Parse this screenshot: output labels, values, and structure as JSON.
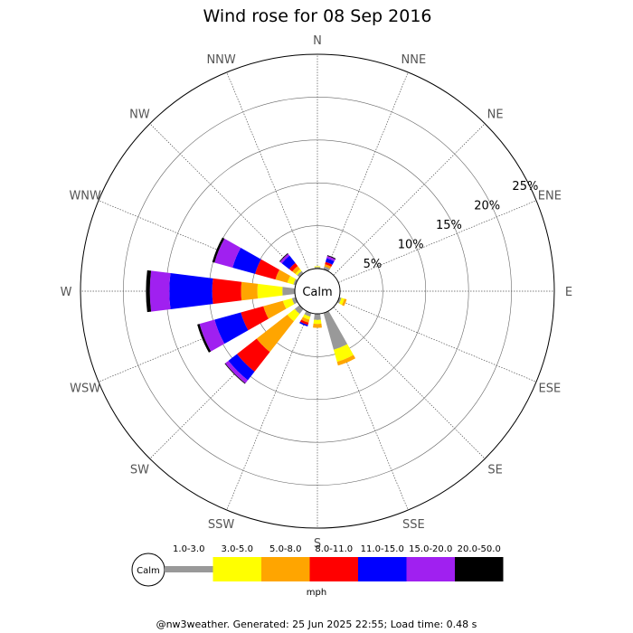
{
  "chart_data": {
    "type": "windrose",
    "title": "Wind rose for 08 Sep 2016",
    "directions": [
      "N",
      "NNE",
      "NE",
      "ENE",
      "E",
      "ESE",
      "SE",
      "SSE",
      "S",
      "SSW",
      "SW",
      "WSW",
      "W",
      "WNW",
      "NW",
      "NNW"
    ],
    "ring_labels": [
      "5%",
      "10%",
      "15%",
      "20%",
      "25%"
    ],
    "ring_values": [
      5,
      10,
      15,
      20,
      25
    ],
    "rmax": 27.5,
    "calm_label": "Calm",
    "unit": "mph",
    "speed_bins": [
      {
        "label": "1.0-3.0",
        "color": "#999999"
      },
      {
        "label": "3.0-5.0",
        "color": "#ffff00"
      },
      {
        "label": "5.0-8.0",
        "color": "#ffa500"
      },
      {
        "label": "8.0-11.0",
        "color": "#ff0000"
      },
      {
        "label": "11.0-15.0",
        "color": "#0000ff"
      },
      {
        "label": "15.0-20.0",
        "color": "#a020f0"
      },
      {
        "label": "20.0-50.0",
        "color": "#000000"
      }
    ],
    "series": [
      {
        "direction": "N",
        "values": [
          0.2,
          0.1,
          0,
          0,
          0,
          0,
          0
        ]
      },
      {
        "direction": "NNE",
        "values": [
          0.4,
          0,
          0.3,
          0.3,
          0.5,
          0.3,
          0.1
        ]
      },
      {
        "direction": "NE",
        "values": [
          0,
          0,
          0,
          0,
          0,
          0,
          0
        ]
      },
      {
        "direction": "ENE",
        "values": [
          0,
          0,
          0,
          0,
          0,
          0,
          0
        ]
      },
      {
        "direction": "E",
        "values": [
          0,
          0,
          0,
          0,
          0,
          0,
          0
        ]
      },
      {
        "direction": "ESE",
        "values": [
          0.3,
          0.4,
          0.3,
          0,
          0,
          0,
          0
        ]
      },
      {
        "direction": "SE",
        "values": [
          0,
          0,
          0,
          0,
          0,
          0,
          0
        ]
      },
      {
        "direction": "SSE",
        "values": [
          4.9,
          1.6,
          0.5,
          0,
          0,
          0,
          0
        ]
      },
      {
        "direction": "S",
        "values": [
          0.8,
          0.5,
          0.5,
          0,
          0,
          0,
          0
        ]
      },
      {
        "direction": "SSW",
        "values": [
          0.5,
          0.4,
          0.4,
          0.3,
          0.2,
          0,
          0
        ]
      },
      {
        "direction": "SW",
        "values": [
          0.8,
          1.2,
          5.0,
          3.2,
          1.4,
          0.5,
          0.1
        ]
      },
      {
        "direction": "WSW",
        "values": [
          0.5,
          1.2,
          2.6,
          3.0,
          3.5,
          2.0,
          0.3
        ]
      },
      {
        "direction": "W",
        "values": [
          1.6,
          3.2,
          2.1,
          3.7,
          5.5,
          2.5,
          0.5
        ]
      },
      {
        "direction": "WNW",
        "values": [
          0.3,
          0.8,
          1.6,
          2.7,
          3.0,
          2.4,
          0.3
        ]
      },
      {
        "direction": "NW",
        "values": [
          0.4,
          0.3,
          0.5,
          0.5,
          1.2,
          0.3,
          0.1
        ]
      },
      {
        "direction": "NNW",
        "values": [
          0,
          0,
          0,
          0,
          0,
          0,
          0
        ]
      }
    ]
  },
  "footer": "@nw3weather. Generated: 25 Jun 2025 22:55; Load time: 0.48 s"
}
